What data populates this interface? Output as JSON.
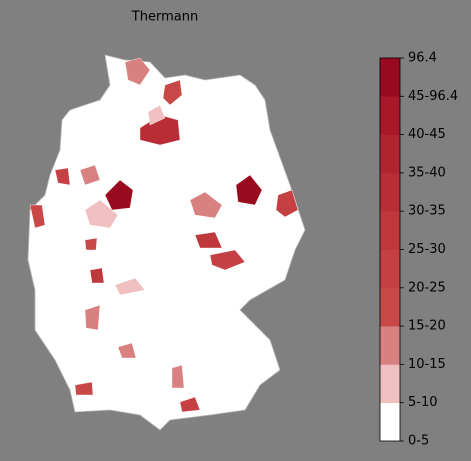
{
  "title": "Thermann",
  "colorbar": {
    "segments": [
      {
        "color": "#ffffff"
      },
      {
        "color": "#f0c0c0"
      },
      {
        "color": "#d98080"
      },
      {
        "color": "#c84848"
      },
      {
        "color": "#c44042"
      },
      {
        "color": "#bf383c"
      },
      {
        "color": "#b92e36"
      },
      {
        "color": "#b02430"
      },
      {
        "color": "#a81828"
      },
      {
        "color": "#9a0a1e"
      }
    ],
    "tick_labels": [
      "0-5",
      "5-10",
      "10-15",
      "15-20",
      "20-25",
      "25-30",
      "30-35",
      "35-40",
      "40-45",
      "45-96.4",
      "96.4"
    ]
  }
}
